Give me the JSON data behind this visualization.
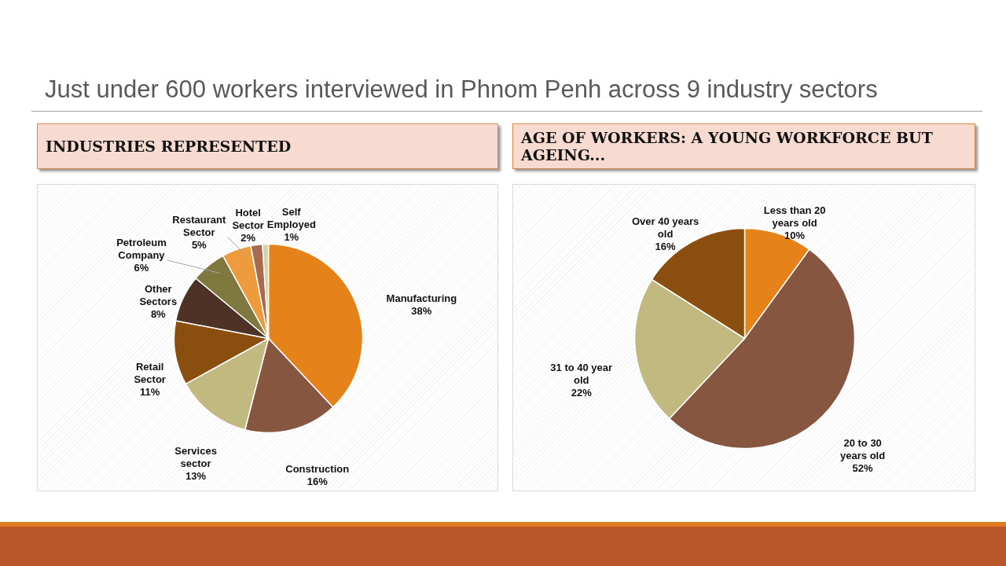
{
  "chart_data": [
    {
      "type": "pie",
      "title": "Just under 600 workers interviewed in Phnom Penh across 9 industry sectors",
      "subtitle": "INDUSTRIES REPRESENTED",
      "categories": [
        "Manufacturing",
        "Construction",
        "Services sector",
        "Retail Sector",
        "Other Sectors",
        "Petroleum Company",
        "Restaurant Sector",
        "Hotel Sector",
        "Self Employed"
      ],
      "values": [
        38,
        16,
        13,
        11,
        8,
        6,
        5,
        2,
        1
      ],
      "value_labels": [
        "38%",
        "16%",
        "13%",
        "11%",
        "8%",
        "6%",
        "5%",
        "2%",
        "1%"
      ],
      "colors": [
        "#e6821a",
        "#875640",
        "#c2b980",
        "#8a4e0f",
        "#4e3226",
        "#7f783f",
        "#ee9b3d",
        "#a86b4f",
        "#d8d1a8"
      ]
    },
    {
      "type": "pie",
      "title": "AGE OF WORKERS: A YOUNG WORKFORCE BUT AGEING...",
      "categories": [
        "Less than 20 years old",
        "20 to 30 years old",
        "31 to 40 year old",
        "Over 40 years old"
      ],
      "values": [
        10,
        52,
        22,
        16
      ],
      "value_labels": [
        "10%",
        "52%",
        "22%",
        "16%"
      ],
      "colors": [
        "#e6821a",
        "#875640",
        "#c2b980",
        "#8a4e0f"
      ]
    }
  ]
}
